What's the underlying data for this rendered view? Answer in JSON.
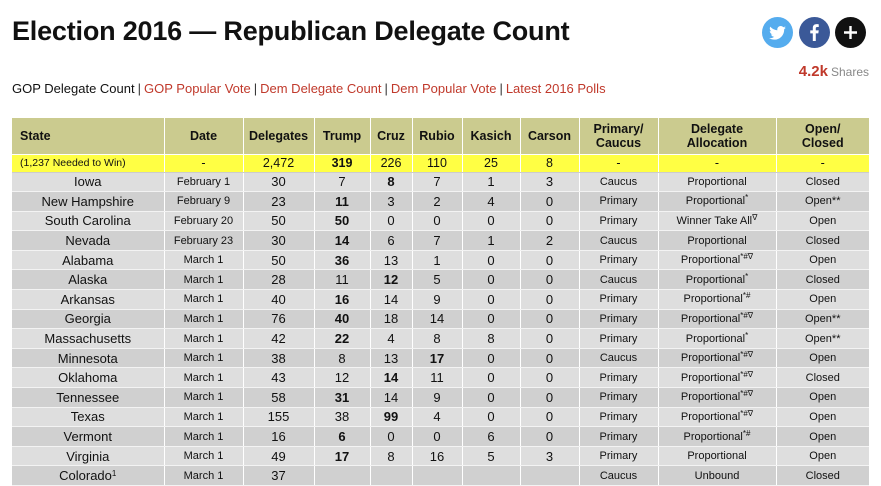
{
  "page": {
    "title": "Election 2016 — Republican Delegate Count"
  },
  "shares": {
    "count": "4.2k",
    "label": "Shares"
  },
  "nav": {
    "current": "GOP Delegate Count",
    "links": [
      "GOP Popular Vote",
      "Dem Delegate Count",
      "Dem Popular Vote",
      "Latest 2016 Polls"
    ],
    "separator": "|"
  },
  "table": {
    "headers": {
      "state": "State",
      "date": "Date",
      "delegates": "Delegates",
      "trump": "Trump",
      "cruz": "Cruz",
      "rubio": "Rubio",
      "kasich": "Kasich",
      "carson": "Carson",
      "primary_1": "Primary/",
      "primary_2": "Caucus",
      "alloc_1": "Delegate",
      "alloc_2": "Allocation",
      "open_1": "Open/",
      "open_2": "Closed"
    },
    "needed": {
      "state": "(1,237 Needed to Win)",
      "date": "-",
      "delegates": "2,472",
      "trump": "319",
      "cruz": "226",
      "rubio": "110",
      "kasich": "25",
      "carson": "8",
      "type": "-",
      "alloc": "-",
      "open": "-"
    },
    "rows": [
      {
        "state": "Iowa",
        "sup": "",
        "date": "February 1",
        "delegates": "30",
        "trump": "7",
        "cruz": "8",
        "rubio": "7",
        "kasich": "1",
        "carson": "3",
        "type": "Caucus",
        "alloc": "Proportional",
        "alloc_sup": "",
        "open": "Closed",
        "winner": "cruz"
      },
      {
        "state": "New Hampshire",
        "sup": "",
        "date": "February 9",
        "delegates": "23",
        "trump": "11",
        "cruz": "3",
        "rubio": "2",
        "kasich": "4",
        "carson": "0",
        "type": "Primary",
        "alloc": "Proportional",
        "alloc_sup": "*",
        "open": "Open**",
        "winner": "trump"
      },
      {
        "state": "South Carolina",
        "sup": "",
        "date": "February 20",
        "delegates": "50",
        "trump": "50",
        "cruz": "0",
        "rubio": "0",
        "kasich": "0",
        "carson": "0",
        "type": "Primary",
        "alloc": "Winner Take All",
        "alloc_sup": "∇",
        "open": "Open",
        "winner": "trump"
      },
      {
        "state": "Nevada",
        "sup": "",
        "date": "February 23",
        "delegates": "30",
        "trump": "14",
        "cruz": "6",
        "rubio": "7",
        "kasich": "1",
        "carson": "2",
        "type": "Caucus",
        "alloc": "Proportional",
        "alloc_sup": "",
        "open": "Closed",
        "winner": "trump"
      },
      {
        "state": "Alabama",
        "sup": "",
        "date": "March 1",
        "delegates": "50",
        "trump": "36",
        "cruz": "13",
        "rubio": "1",
        "kasich": "0",
        "carson": "0",
        "type": "Primary",
        "alloc": "Proportional",
        "alloc_sup": "*#∇",
        "open": "Open",
        "winner": "trump"
      },
      {
        "state": "Alaska",
        "sup": "",
        "date": "March 1",
        "delegates": "28",
        "trump": "11",
        "cruz": "12",
        "rubio": "5",
        "kasich": "0",
        "carson": "0",
        "type": "Caucus",
        "alloc": "Proportional",
        "alloc_sup": "*",
        "open": "Closed",
        "winner": "cruz"
      },
      {
        "state": "Arkansas",
        "sup": "",
        "date": "March 1",
        "delegates": "40",
        "trump": "16",
        "cruz": "14",
        "rubio": "9",
        "kasich": "0",
        "carson": "0",
        "type": "Primary",
        "alloc": "Proportional",
        "alloc_sup": "*#",
        "open": "Open",
        "winner": "trump"
      },
      {
        "state": "Georgia",
        "sup": "",
        "date": "March 1",
        "delegates": "76",
        "trump": "40",
        "cruz": "18",
        "rubio": "14",
        "kasich": "0",
        "carson": "0",
        "type": "Primary",
        "alloc": "Proportional",
        "alloc_sup": "*#∇",
        "open": "Open**",
        "winner": "trump"
      },
      {
        "state": "Massachusetts",
        "sup": "",
        "date": "March 1",
        "delegates": "42",
        "trump": "22",
        "cruz": "4",
        "rubio": "8",
        "kasich": "8",
        "carson": "0",
        "type": "Primary",
        "alloc": "Proportional",
        "alloc_sup": "*",
        "open": "Open**",
        "winner": "trump"
      },
      {
        "state": "Minnesota",
        "sup": "",
        "date": "March 1",
        "delegates": "38",
        "trump": "8",
        "cruz": "13",
        "rubio": "17",
        "kasich": "0",
        "carson": "0",
        "type": "Caucus",
        "alloc": "Proportional",
        "alloc_sup": "*#∇",
        "open": "Open",
        "winner": "rubio"
      },
      {
        "state": "Oklahoma",
        "sup": "",
        "date": "March 1",
        "delegates": "43",
        "trump": "12",
        "cruz": "14",
        "rubio": "11",
        "kasich": "0",
        "carson": "0",
        "type": "Primary",
        "alloc": "Proportional",
        "alloc_sup": "*#∇",
        "open": "Closed",
        "winner": "cruz"
      },
      {
        "state": "Tennessee",
        "sup": "",
        "date": "March 1",
        "delegates": "58",
        "trump": "31",
        "cruz": "14",
        "rubio": "9",
        "kasich": "0",
        "carson": "0",
        "type": "Primary",
        "alloc": "Proportional",
        "alloc_sup": "*#∇",
        "open": "Open",
        "winner": "trump"
      },
      {
        "state": "Texas",
        "sup": "",
        "date": "March 1",
        "delegates": "155",
        "trump": "38",
        "cruz": "99",
        "rubio": "4",
        "kasich": "0",
        "carson": "0",
        "type": "Primary",
        "alloc": "Proportional",
        "alloc_sup": "*#∇",
        "open": "Open",
        "winner": "cruz"
      },
      {
        "state": "Vermont",
        "sup": "",
        "date": "March 1",
        "delegates": "16",
        "trump": "6",
        "cruz": "0",
        "rubio": "0",
        "kasich": "6",
        "carson": "0",
        "type": "Primary",
        "alloc": "Proportional",
        "alloc_sup": "*#",
        "open": "Open",
        "winner": "trump"
      },
      {
        "state": "Virginia",
        "sup": "",
        "date": "March 1",
        "delegates": "49",
        "trump": "17",
        "cruz": "8",
        "rubio": "16",
        "kasich": "5",
        "carson": "3",
        "type": "Primary",
        "alloc": "Proportional",
        "alloc_sup": "",
        "open": "Open",
        "winner": "trump"
      },
      {
        "state": "Colorado",
        "sup": "1",
        "date": "March 1",
        "delegates": "37",
        "trump": "",
        "cruz": "",
        "rubio": "",
        "kasich": "",
        "carson": "",
        "type": "Caucus",
        "alloc": "Unbound",
        "alloc_sup": "",
        "open": "Closed",
        "winner": ""
      }
    ]
  },
  "colors": {
    "header_bg": "#cbcb8f",
    "needed_bg": "#ffff44",
    "row_a": "#d0d0d0",
    "row_b": "#dedede",
    "link": "#c0392b",
    "twitter": "#55acee",
    "facebook": "#3b5998",
    "plus": "#111111"
  },
  "icons": [
    "twitter-icon",
    "facebook-icon",
    "plus-icon"
  ]
}
